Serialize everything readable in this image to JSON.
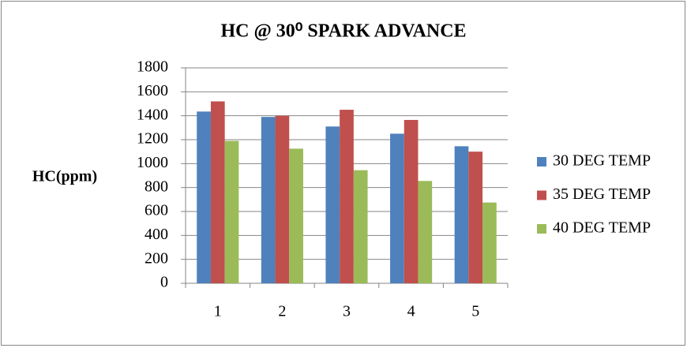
{
  "chart_data": {
    "type": "bar",
    "title": "HC @ 30⁰ SPARK ADVANCE",
    "y_label": "HC(ppm)",
    "categories": [
      "1",
      "2",
      "3",
      "4",
      "5"
    ],
    "series": [
      {
        "name": "30 DEG TEMP",
        "color": "#4f81bd",
        "values": [
          1435,
          1390,
          1310,
          1250,
          1145
        ]
      },
      {
        "name": "35 DEG TEMP",
        "color": "#c0504d",
        "values": [
          1520,
          1400,
          1450,
          1365,
          1100
        ]
      },
      {
        "name": "40 DEG TEMP",
        "color": "#9bbb59",
        "values": [
          1190,
          1125,
          945,
          855,
          675
        ]
      }
    ],
    "ylim": [
      0,
      1800
    ],
    "yticks": [
      0,
      200,
      400,
      600,
      800,
      1000,
      1200,
      1400,
      1600,
      1800
    ],
    "grid": true,
    "legend": "right"
  }
}
